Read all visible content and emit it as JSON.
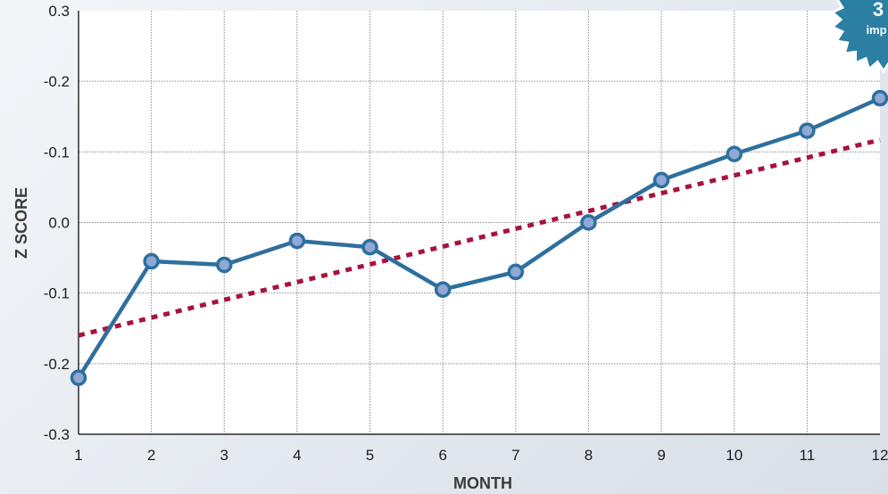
{
  "chart_data": {
    "type": "line",
    "xlabel": "MONTH",
    "ylabel": "Z SCORE",
    "x_ticks": [
      "1",
      "2",
      "3",
      "4",
      "5",
      "6",
      "7",
      "8",
      "9",
      "10",
      "11",
      "12"
    ],
    "y_ticks": [
      "0.3",
      "-0.2",
      "-0.1",
      "0.0",
      "-0.1",
      "-0.2",
      "-0.3"
    ],
    "ylim": [
      -0.3,
      0.3
    ],
    "xlim": [
      1,
      12
    ],
    "grid": true,
    "series": [
      {
        "style": "solid-line-with-markers",
        "color": "#2e6f9e",
        "marker_fill": "#8fa9d4",
        "x": [
          1,
          2,
          3,
          4,
          5,
          6,
          7,
          8,
          9,
          10,
          11,
          12
        ],
        "y": [
          -0.22,
          -0.055,
          -0.06,
          -0.026,
          -0.035,
          -0.095,
          -0.07,
          0.0,
          0.06,
          0.097,
          0.13,
          0.176
        ]
      },
      {
        "style": "dotted-trendline",
        "color": "#a8123c",
        "x": [
          1,
          12
        ],
        "y": [
          -0.16,
          0.117
        ]
      }
    ]
  },
  "badge": {
    "big_text": "3",
    "small_text": "imp",
    "color": "#2b7fa3"
  }
}
